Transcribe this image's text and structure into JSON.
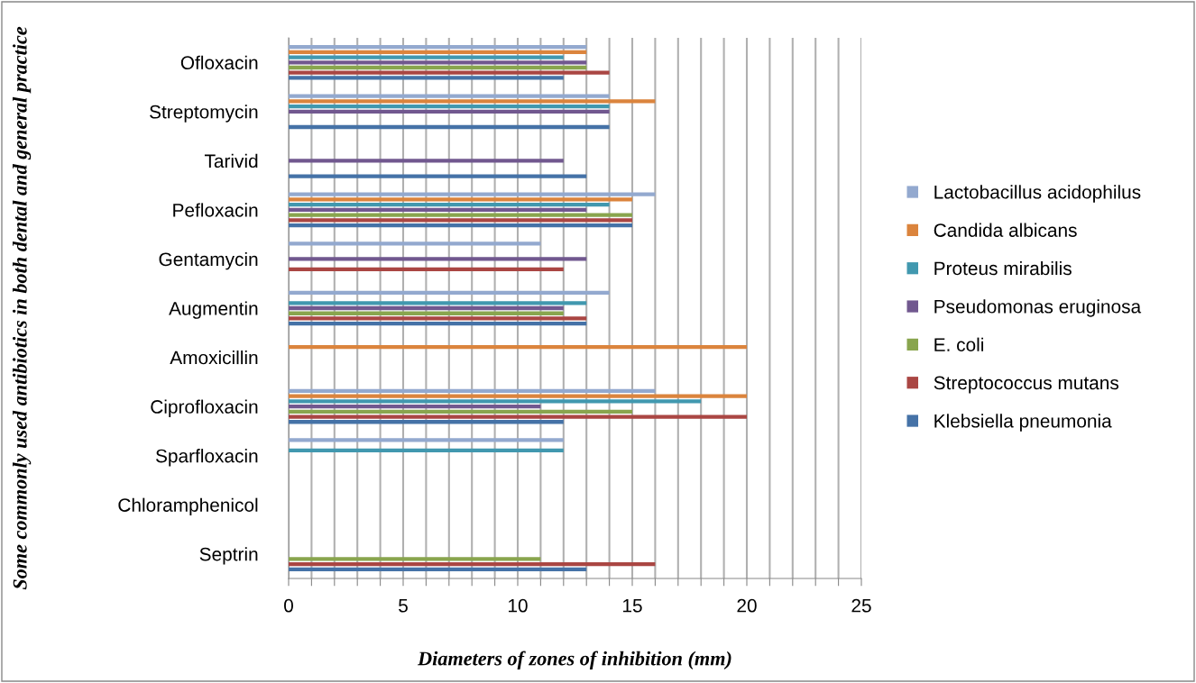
{
  "chart_data": {
    "type": "bar",
    "orientation": "horizontal",
    "xlabel": "Diameters of zones of inhibition (mm)",
    "ylabel": "Some commonly used antibiotics in both dental and general practice",
    "categories": [
      "Ofloxacin",
      "Streptomycin",
      "Tarivid",
      "Pefloxacin",
      "Gentamycin",
      "Augmentin",
      "Amoxicillin",
      "Ciprofloxacin",
      "Sparfloxacin",
      "Chloramphenicol",
      "Septrin"
    ],
    "series": [
      {
        "name": "Klebsiella pneumonia",
        "color": "#4572a7",
        "values": [
          12,
          14,
          13,
          15,
          null,
          13,
          null,
          12,
          null,
          null,
          13
        ]
      },
      {
        "name": "Streptococcus mutans",
        "color": "#aa4643",
        "values": [
          14,
          null,
          null,
          15,
          12,
          13,
          null,
          20,
          null,
          null,
          16
        ]
      },
      {
        "name": "E. coli",
        "color": "#89a54e",
        "values": [
          13,
          null,
          null,
          15,
          null,
          12,
          null,
          15,
          null,
          null,
          11
        ]
      },
      {
        "name": "Pseudomonas eruginosa",
        "color": "#71588f",
        "values": [
          13,
          14,
          12,
          13,
          13,
          12,
          null,
          11,
          null,
          null,
          null
        ]
      },
      {
        "name": "Proteus mirabilis",
        "color": "#4198af",
        "values": [
          12,
          14,
          null,
          14,
          null,
          13,
          null,
          18,
          12,
          null,
          null
        ]
      },
      {
        "name": "Candida albicans",
        "color": "#db843d",
        "values": [
          13,
          16,
          null,
          15,
          null,
          null,
          20,
          20,
          null,
          null,
          null
        ]
      },
      {
        "name": "Lactobacillus acidophilus",
        "color": "#93a9cf",
        "values": [
          13,
          14,
          null,
          16,
          11,
          14,
          null,
          16,
          12,
          null,
          null
        ]
      }
    ],
    "xlim": [
      0,
      25
    ],
    "xticks": [
      0,
      {
        "value": 1,
        "label": null
      },
      {
        "value": 2,
        "label": null
      },
      {
        "value": 3,
        "label": null
      },
      {
        "value": 4,
        "label": null
      },
      5,
      {
        "value": 6,
        "label": null
      },
      {
        "value": 7,
        "label": null
      },
      {
        "value": 8,
        "label": null
      },
      {
        "value": 9,
        "label": null
      },
      10,
      {
        "value": 11,
        "label": null
      },
      {
        "value": 12,
        "label": null
      },
      {
        "value": 13,
        "label": null
      },
      {
        "value": 14,
        "label": null
      },
      15,
      {
        "value": 16,
        "label": null
      },
      {
        "value": 17,
        "label": null
      },
      {
        "value": 18,
        "label": null
      },
      {
        "value": 19,
        "label": null
      },
      20,
      {
        "value": 21,
        "label": null
      },
      {
        "value": 22,
        "label": null
      },
      {
        "value": 23,
        "label": null
      },
      {
        "value": 24,
        "label": null
      },
      25
    ],
    "grid": "x",
    "legend": "right"
  }
}
